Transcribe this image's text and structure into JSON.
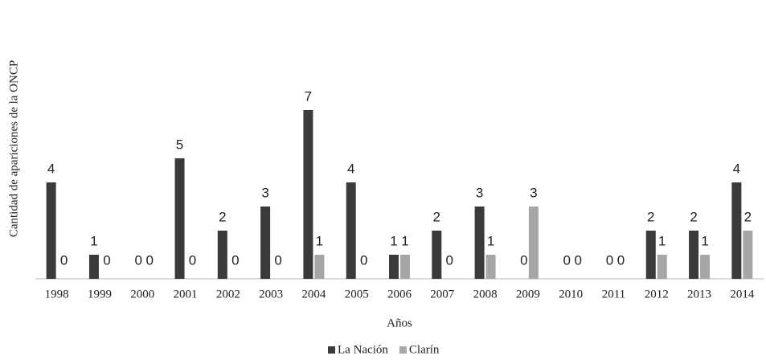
{
  "chart_data": {
    "type": "bar",
    "y_label": "Cantidad de apariciones de la ONCP",
    "x_label": "Años",
    "categories": [
      "1998",
      "1999",
      "2000",
      "2001",
      "2002",
      "2003",
      "2004",
      "2005",
      "2006",
      "2007",
      "2008",
      "2009",
      "2010",
      "2011",
      "2012",
      "2013",
      "2014"
    ],
    "series": [
      {
        "name": "La Nación",
        "color": "#3a3a3a",
        "values": [
          4,
          1,
          0,
          5,
          2,
          3,
          7,
          4,
          1,
          2,
          3,
          0,
          0,
          0,
          2,
          2,
          4
        ]
      },
      {
        "name": "Clarín",
        "color": "#a6a6a6",
        "values": [
          0,
          0,
          0,
          0,
          0,
          0,
          1,
          0,
          1,
          0,
          1,
          3,
          0,
          0,
          1,
          1,
          2
        ]
      }
    ],
    "ylim": [
      0,
      7
    ],
    "legend": "bottom"
  }
}
